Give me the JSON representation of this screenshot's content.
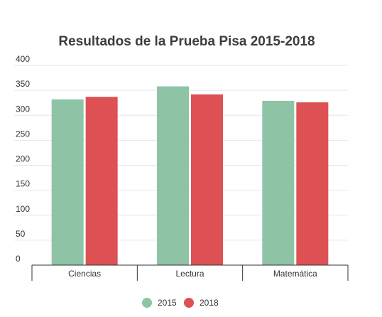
{
  "chart_data": {
    "type": "bar",
    "title": "Resultados de la Prueba Pisa  2015-2018",
    "categories": [
      "Ciencias",
      "Lectura",
      "Matemática"
    ],
    "series": [
      {
        "name": "2015",
        "values": [
          332,
          358,
          329
        ],
        "color": "#8ec3a6"
      },
      {
        "name": "2018",
        "values": [
          337,
          342,
          326
        ],
        "color": "#dd5154"
      }
    ],
    "yticks": [
      0,
      50,
      100,
      150,
      200,
      250,
      300,
      350,
      400
    ],
    "ylim": [
      0,
      400
    ],
    "grid": true,
    "legend_position": "bottom"
  }
}
